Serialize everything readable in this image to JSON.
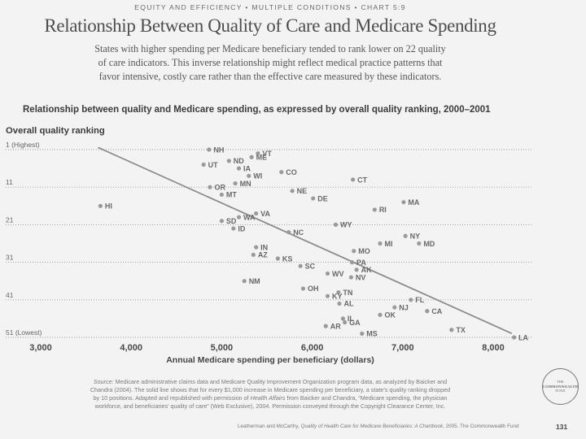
{
  "header": {
    "kicker": "EQUITY AND EFFICIENCY • MULTIPLE CONDITIONS • CHART 5:9",
    "title": "Relationship Between Quality of Care and Medicare Spending",
    "intro_lines": [
      "States with higher spending per Medicare beneficiary tended to rank lower on 22 quality",
      "of care indicators. This inverse relationship might reflect medical practice patterns that",
      "favor intensive, costly care rather than the effective care measured by these indicators."
    ]
  },
  "chart_data": {
    "type": "scatter",
    "title": "Relationship between quality and Medicare spending, as expressed by overall quality ranking, 2000–2001",
    "xlabel": "Annual Medicare spending per beneficiary (dollars)",
    "ylabel": "Overall quality ranking",
    "xlim": [
      2600,
      8420
    ],
    "ylim": [
      51,
      1
    ],
    "y_inverted": true,
    "grid": "horizontal dotted",
    "x_ticks": [
      3000,
      4000,
      5000,
      6000,
      7000,
      8000
    ],
    "x_tick_labels": [
      "3,000",
      "4,000",
      "5,000",
      "6,000",
      "7,000",
      "8,000"
    ],
    "y_ticks": [
      1,
      11,
      21,
      31,
      41,
      51
    ],
    "y_tick_labels": [
      "1 (Highest)",
      "11",
      "21",
      "31",
      "41",
      "51 (Lowest)"
    ],
    "points": [
      {
        "state": "NH",
        "spending": 4860,
        "rank": 1
      },
      {
        "state": "VT",
        "spending": 5400,
        "rank": 2
      },
      {
        "state": "ME",
        "spending": 5330,
        "rank": 3
      },
      {
        "state": "ND",
        "spending": 5080,
        "rank": 4
      },
      {
        "state": "UT",
        "spending": 4800,
        "rank": 5
      },
      {
        "state": "IA",
        "spending": 5190,
        "rank": 6
      },
      {
        "state": "CO",
        "spending": 5660,
        "rank": 7
      },
      {
        "state": "WI",
        "spending": 5300,
        "rank": 8
      },
      {
        "state": "CT",
        "spending": 6450,
        "rank": 9
      },
      {
        "state": "MN",
        "spending": 5150,
        "rank": 10
      },
      {
        "state": "OR",
        "spending": 4870,
        "rank": 11
      },
      {
        "state": "NE",
        "spending": 5780,
        "rank": 12
      },
      {
        "state": "MT",
        "spending": 5000,
        "rank": 13
      },
      {
        "state": "DE",
        "spending": 6010,
        "rank": 14
      },
      {
        "state": "MA",
        "spending": 7010,
        "rank": 15
      },
      {
        "state": "HI",
        "spending": 3660,
        "rank": 16
      },
      {
        "state": "RI",
        "spending": 6690,
        "rank": 17
      },
      {
        "state": "VA",
        "spending": 5380,
        "rank": 18
      },
      {
        "state": "WA",
        "spending": 5190,
        "rank": 19
      },
      {
        "state": "SD",
        "spending": 5000,
        "rank": 20
      },
      {
        "state": "WY",
        "spending": 6260,
        "rank": 21
      },
      {
        "state": "ID",
        "spending": 5130,
        "rank": 22
      },
      {
        "state": "NC",
        "spending": 5740,
        "rank": 23
      },
      {
        "state": "NY",
        "spending": 7030,
        "rank": 24
      },
      {
        "state": "MD",
        "spending": 7180,
        "rank": 26
      },
      {
        "state": "MI",
        "spending": 6750,
        "rank": 26
      },
      {
        "state": "IN",
        "spending": 5380,
        "rank": 27
      },
      {
        "state": "MO",
        "spending": 6460,
        "rank": 28
      },
      {
        "state": "AZ",
        "spending": 5350,
        "rank": 29
      },
      {
        "state": "KS",
        "spending": 5620,
        "rank": 30
      },
      {
        "state": "PA",
        "spending": 6440,
        "rank": 31
      },
      {
        "state": "SC",
        "spending": 5870,
        "rank": 32
      },
      {
        "state": "AK",
        "spending": 6490,
        "rank": 33
      },
      {
        "state": "WV",
        "spending": 6170,
        "rank": 34
      },
      {
        "state": "NV",
        "spending": 6430,
        "rank": 35
      },
      {
        "state": "NM",
        "spending": 5250,
        "rank": 36
      },
      {
        "state": "OH",
        "spending": 5900,
        "rank": 38
      },
      {
        "state": "TN",
        "spending": 6290,
        "rank": 39
      },
      {
        "state": "KY",
        "spending": 6170,
        "rank": 40
      },
      {
        "state": "FL",
        "spending": 7090,
        "rank": 41
      },
      {
        "state": "AL",
        "spending": 6300,
        "rank": 42
      },
      {
        "state": "NJ",
        "spending": 6910,
        "rank": 43
      },
      {
        "state": "CA",
        "spending": 7270,
        "rank": 44
      },
      {
        "state": "OK",
        "spending": 6750,
        "rank": 45
      },
      {
        "state": "IL",
        "spending": 6340,
        "rank": 46
      },
      {
        "state": "GA",
        "spending": 6360,
        "rank": 47
      },
      {
        "state": "AR",
        "spending": 6150,
        "rank": 48
      },
      {
        "state": "TX",
        "spending": 7540,
        "rank": 49
      },
      {
        "state": "MS",
        "spending": 6550,
        "rank": 50
      },
      {
        "state": "LA",
        "spending": 8230,
        "rank": 51
      }
    ],
    "trend_line": {
      "description": "solid fitted line: ranking drops ~10 positions per $1,000 increase",
      "x": [
        3640,
        8200
      ],
      "y": [
        0.5,
        49.9
      ]
    },
    "colors": {
      "point": "#9a9a9a",
      "point_label": "#686868",
      "trend_line": "#8c8c8c",
      "gridline": "#9c9c9c"
    }
  },
  "source": {
    "line1_label": "Source:",
    "line1_text": " Medicare administrative claims data and Medicare Quality Improvement Organization program data, as analyzed by Baicker and",
    "line2": "Chandra (2004). The solid line shows that for every $1,000 increase in Medicare spending per beneficiary, a state’s quality ranking dropped",
    "line3_pre": "by 10 positions. Adapted and republished with permission of ",
    "line3_italic": "Health Affairs",
    "line3_post": " from Baicker and Chandra, “Medicare spending, the physician",
    "line4": "workforce, and beneficiaries’ quality of care” (Web Exclusive), 2004. Permission conveyed through the Copyright Clearance Center, Inc."
  },
  "logo": {
    "lines": [
      "THE",
      "COMMONWEALTH",
      "FUND"
    ]
  },
  "footer": {
    "citation_pre": "Leatherman and McCarthy, ",
    "citation_italic": "Quality of Health Care for Medicare Beneficiaries: A Chartbook",
    "citation_post": ", 2005. The Commonwealth Fund",
    "page_number": "131"
  }
}
